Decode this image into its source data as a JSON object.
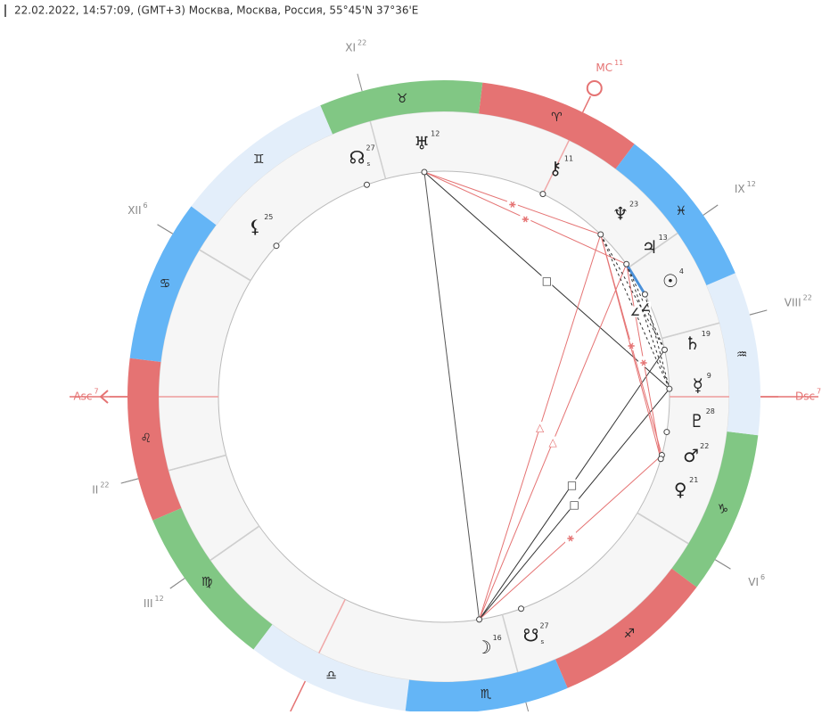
{
  "header": {
    "text": "22.02.2022, 14:57:09, (GMT+3) Москва, Москва, Россия, 55°45'N 37°36'E"
  },
  "signs": [
    {
      "glyph": "♈",
      "color": "#e57373"
    },
    {
      "glyph": "♉",
      "color": "#81c784"
    },
    {
      "glyph": "♊",
      "color": "#e3eefa"
    },
    {
      "glyph": "♋",
      "color": "#64b5f6"
    },
    {
      "glyph": "♌",
      "color": "#e57373"
    },
    {
      "glyph": "♍",
      "color": "#81c784"
    },
    {
      "glyph": "♎",
      "color": "#e3eefa"
    },
    {
      "glyph": "♏",
      "color": "#64b5f6"
    },
    {
      "glyph": "♐",
      "color": "#e57373"
    },
    {
      "glyph": "♑",
      "color": "#81c784"
    },
    {
      "glyph": "♒",
      "color": "#e3eefa"
    },
    {
      "glyph": "♓",
      "color": "#64b5f6"
    }
  ],
  "houses": [
    {
      "label": "Asc",
      "degree": 7,
      "sign": "♌",
      "color": "#e57373"
    },
    {
      "label": "II",
      "degree": 22,
      "sign": "♌",
      "color": "#888888"
    },
    {
      "label": "III",
      "degree": 12,
      "sign": "♍",
      "color": "#888888"
    },
    {
      "label": "VI",
      "degree": 6,
      "sign": "♑",
      "color": "#888888"
    },
    {
      "label": "Dsc",
      "degree": 7,
      "sign": "♒",
      "color": "#e57373"
    },
    {
      "label": "VIII",
      "degree": 22,
      "sign": "♒",
      "color": "#888888"
    },
    {
      "label": "IX",
      "degree": 12,
      "sign": "♓",
      "color": "#888888"
    },
    {
      "label": "MC",
      "degree": 11,
      "sign": "♈",
      "color": "#e57373"
    },
    {
      "label": "XI",
      "degree": 22,
      "sign": "♉",
      "color": "#888888"
    },
    {
      "label": "XII",
      "degree": 6,
      "sign": "♋",
      "color": "#888888"
    }
  ],
  "planets": [
    {
      "glyph": "♅",
      "degree": 12,
      "sign": "♉"
    },
    {
      "glyph": "☊",
      "degree": 27,
      "sign": "♉",
      "mark": "s"
    },
    {
      "glyph": "⚸",
      "degree": 25,
      "sign": "♊"
    },
    {
      "glyph": "⚷",
      "degree": 11,
      "sign": "♈"
    },
    {
      "glyph": "♆",
      "degree": 23,
      "sign": "♓"
    },
    {
      "glyph": "♃",
      "degree": 13,
      "sign": "♓"
    },
    {
      "glyph": "☉",
      "degree": 4,
      "sign": "♓"
    },
    {
      "glyph": "♄",
      "degree": 19,
      "sign": "♒"
    },
    {
      "glyph": "☿",
      "degree": 9,
      "sign": "♒"
    },
    {
      "glyph": "♇",
      "degree": 28,
      "sign": "♑"
    },
    {
      "glyph": "♂",
      "degree": 22,
      "sign": "♑"
    },
    {
      "glyph": "♀",
      "degree": 21,
      "sign": "♑"
    },
    {
      "glyph": "☽",
      "degree": 16,
      "sign": "♏"
    },
    {
      "glyph": "☋",
      "degree": 27,
      "sign": "♏",
      "mark": "s"
    }
  ]
}
